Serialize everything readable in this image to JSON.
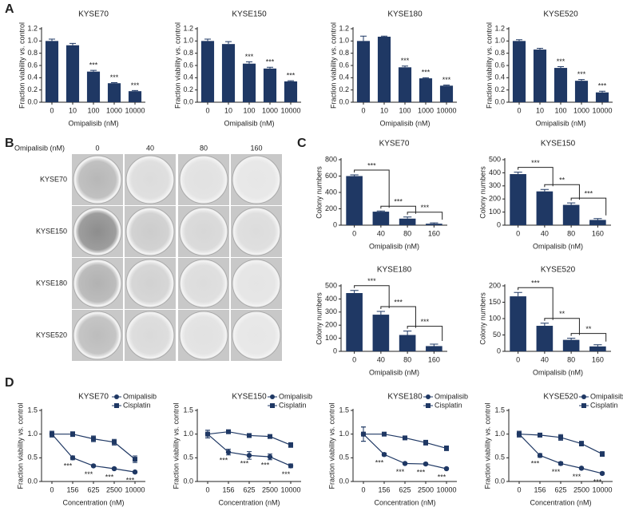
{
  "panel_labels": [
    "A",
    "B",
    "C",
    "D"
  ],
  "colony_assay": {
    "header": "Omipalisib (nM)",
    "doses": [
      "0",
      "40",
      "80",
      "160"
    ],
    "cell_lines": [
      "KYSE70",
      "KYSE150",
      "KYSE180",
      "KYSE520"
    ]
  },
  "chart_data": [
    {
      "type": "bar",
      "title": "KYSE70",
      "xlabel": "Omipalisib (nM)",
      "ylabel": "Fraction viability vs. control",
      "color": "#1f3864",
      "categories": [
        "0",
        "10",
        "100",
        "1000",
        "10000"
      ],
      "values": [
        1.0,
        0.93,
        0.5,
        0.31,
        0.18
      ],
      "errors": [
        0.03,
        0.03,
        0.02,
        0.01,
        0.01
      ],
      "significance": [
        null,
        null,
        "***",
        "***",
        "***"
      ],
      "ylim": [
        0,
        1.2
      ],
      "yticks": [
        {
          "value": 0,
          "label": "0.0"
        },
        0.2,
        0.4,
        0.6,
        0.8,
        {
          "value": 1,
          "label": "1.0"
        },
        1.2
      ]
    },
    {
      "type": "bar",
      "title": "KYSE150",
      "xlabel": "Omipalisib (nM)",
      "ylabel": "Fraction viability vs. control",
      "color": "#1f3864",
      "categories": [
        "0",
        "10",
        "100",
        "1000",
        "10000"
      ],
      "values": [
        1.0,
        0.95,
        0.63,
        0.55,
        0.34
      ],
      "errors": [
        0.03,
        0.04,
        0.03,
        0.02,
        0.01
      ],
      "significance": [
        null,
        null,
        "***",
        "***",
        "***"
      ],
      "ylim": [
        0,
        1.2
      ],
      "yticks": [
        {
          "value": 0,
          "label": "0.0"
        },
        0.2,
        0.4,
        0.6,
        0.8,
        {
          "value": 1,
          "label": "1.0"
        },
        1.2
      ]
    },
    {
      "type": "bar",
      "title": "KYSE180",
      "xlabel": "Omipalisib (nM)",
      "ylabel": "Fraction viability vs. control",
      "color": "#1f3864",
      "categories": [
        "0",
        "10",
        "100",
        "1000",
        "10000"
      ],
      "values": [
        1.0,
        1.07,
        0.57,
        0.39,
        0.27
      ],
      "errors": [
        0.08,
        0.01,
        0.02,
        0.01,
        0.01
      ],
      "significance": [
        null,
        null,
        "***",
        "***",
        "***"
      ],
      "ylim": [
        0,
        1.2
      ],
      "yticks": [
        {
          "value": 0,
          "label": "0.0"
        },
        0.2,
        0.4,
        0.6,
        0.8,
        {
          "value": 1,
          "label": "1.0"
        },
        1.2
      ]
    },
    {
      "type": "bar",
      "title": "KYSE520",
      "xlabel": "Omipalisib (nM)",
      "ylabel": "Fraction viability vs. control",
      "color": "#1f3864",
      "categories": [
        "0",
        "10",
        "100",
        "1000",
        "10000"
      ],
      "values": [
        1.0,
        0.86,
        0.56,
        0.35,
        0.16
      ],
      "errors": [
        0.02,
        0.02,
        0.02,
        0.02,
        0.02
      ],
      "significance": [
        null,
        null,
        "***",
        "***",
        "***"
      ],
      "ylim": [
        0,
        1.2
      ],
      "yticks": [
        {
          "value": 0,
          "label": "0.0"
        },
        0.2,
        0.4,
        0.6,
        0.8,
        {
          "value": 1,
          "label": "1.0"
        },
        1.2
      ]
    },
    {
      "type": "bar",
      "title": "KYSE70",
      "xlabel": "Omipalisib (nM)",
      "ylabel": "Colony numbers",
      "color": "#1f3864",
      "categories": [
        "0",
        "40",
        "80",
        "160"
      ],
      "values": [
        600,
        165,
        80,
        18
      ],
      "errors": [
        15,
        8,
        20,
        10
      ],
      "comparisons": [
        "***",
        "***",
        "***"
      ],
      "ylim": [
        0,
        800
      ],
      "yticks": [
        0,
        200,
        400,
        600,
        800
      ]
    },
    {
      "type": "bar",
      "title": "KYSE150",
      "xlabel": "Omipalisib (nM)",
      "ylabel": "Colony numbers",
      "color": "#1f3864",
      "categories": [
        "0",
        "40",
        "80",
        "160"
      ],
      "values": [
        390,
        258,
        155,
        40
      ],
      "errors": [
        15,
        15,
        15,
        10
      ],
      "comparisons": [
        "***",
        "**",
        "***"
      ],
      "ylim": [
        0,
        500
      ],
      "yticks": [
        0,
        100,
        200,
        300,
        400,
        500
      ]
    },
    {
      "type": "bar",
      "title": "KYSE180",
      "xlabel": "Omipalisib (nM)",
      "ylabel": "Colony numbers",
      "color": "#1f3864",
      "categories": [
        "0",
        "40",
        "80",
        "160"
      ],
      "values": [
        445,
        280,
        125,
        40
      ],
      "errors": [
        20,
        25,
        30,
        15
      ],
      "comparisons": [
        "***",
        "***",
        "***"
      ],
      "ylim": [
        0,
        500
      ],
      "yticks": [
        0,
        100,
        200,
        300,
        400,
        500
      ]
    },
    {
      "type": "bar",
      "title": "KYSE520",
      "xlabel": "Omipalisib (nM)",
      "ylabel": "Colony numbers",
      "color": "#1f3864",
      "categories": [
        "0",
        "40",
        "80",
        "160"
      ],
      "values": [
        168,
        78,
        35,
        15
      ],
      "errors": [
        12,
        8,
        5,
        5
      ],
      "comparisons": [
        "***",
        "**",
        "**"
      ],
      "ylim": [
        0,
        200
      ],
      "yticks": [
        0,
        50,
        100,
        150,
        200
      ]
    },
    {
      "type": "line",
      "title": "KYSE70",
      "xlabel": "Concentration (nM)",
      "ylabel": "Fraction viability vs. control",
      "categories": [
        "0",
        "156",
        "625",
        "2500",
        "10000"
      ],
      "series": [
        {
          "name": "Omipalisib",
          "color": "#1f3864",
          "marker": "circle",
          "values": [
            1.0,
            0.5,
            0.33,
            0.27,
            0.2
          ],
          "errors": [
            0.06,
            0.04,
            0.02,
            0.02,
            0.02
          ]
        },
        {
          "name": "Cisplatin",
          "color": "#1f3864",
          "marker": "square",
          "values": [
            1.0,
            1.0,
            0.9,
            0.83,
            0.47
          ],
          "errors": [
            0.06,
            0.05,
            0.06,
            0.06,
            0.07
          ]
        }
      ],
      "significance": [
        null,
        "***",
        "***",
        "***",
        "***"
      ],
      "ylim": [
        0,
        1.5
      ],
      "yticks": [
        {
          "value": 0,
          "label": "0.0"
        },
        0.5,
        {
          "value": 1,
          "label": "1.0"
        },
        1.5
      ]
    },
    {
      "type": "line",
      "title": "KYSE150",
      "xlabel": "Concentration (nM)",
      "ylabel": "Fraction viability vs. control",
      "categories": [
        "0",
        "156",
        "625",
        "2500",
        "10000"
      ],
      "series": [
        {
          "name": "Omipalisib",
          "color": "#1f3864",
          "marker": "circle",
          "values": [
            1.0,
            0.62,
            0.55,
            0.52,
            0.33
          ],
          "errors": [
            0.08,
            0.06,
            0.08,
            0.06,
            0.04
          ]
        },
        {
          "name": "Cisplatin",
          "color": "#1f3864",
          "marker": "square",
          "values": [
            1.0,
            1.05,
            0.97,
            0.95,
            0.77
          ],
          "errors": [
            0.08,
            0.03,
            0.02,
            0.02,
            0.05
          ]
        }
      ],
      "significance": [
        null,
        "***",
        "***",
        "***",
        "***"
      ],
      "ylim": [
        0,
        1.5
      ],
      "yticks": [
        {
          "value": 0,
          "label": "0.0"
        },
        0.5,
        {
          "value": 1,
          "label": "1.0"
        },
        1.5
      ]
    },
    {
      "type": "line",
      "title": "KYSE180",
      "xlabel": "Concentration (nM)",
      "ylabel": "Fraction viability vs. control",
      "categories": [
        "0",
        "156",
        "625",
        "2500",
        "10000"
      ],
      "series": [
        {
          "name": "Omipalisib",
          "color": "#1f3864",
          "marker": "circle",
          "values": [
            1.0,
            0.57,
            0.38,
            0.37,
            0.27
          ],
          "errors": [
            0.15,
            0.03,
            0.02,
            0.02,
            0.02
          ]
        },
        {
          "name": "Cisplatin",
          "color": "#1f3864",
          "marker": "square",
          "values": [
            1.0,
            1.0,
            0.92,
            0.82,
            0.7
          ],
          "errors": [
            0.15,
            0.03,
            0.03,
            0.05,
            0.05
          ]
        }
      ],
      "significance": [
        null,
        "***",
        "***",
        "***",
        "***"
      ],
      "ylim": [
        0,
        1.5
      ],
      "yticks": [
        {
          "value": 0,
          "label": "0.0"
        },
        0.5,
        {
          "value": 1,
          "label": "1.0"
        },
        1.5
      ]
    },
    {
      "type": "line",
      "title": "KYSE520",
      "xlabel": "Concentration (nM)",
      "ylabel": "Fraction viability vs. control",
      "categories": [
        "0",
        "156",
        "625",
        "2500",
        "10000"
      ],
      "series": [
        {
          "name": "Omipalisib",
          "color": "#1f3864",
          "marker": "circle",
          "values": [
            1.0,
            0.55,
            0.38,
            0.28,
            0.17
          ],
          "errors": [
            0.06,
            0.04,
            0.03,
            0.02,
            0.02
          ]
        },
        {
          "name": "Cisplatin",
          "color": "#1f3864",
          "marker": "square",
          "values": [
            1.0,
            0.98,
            0.93,
            0.8,
            0.58
          ],
          "errors": [
            0.06,
            0.04,
            0.06,
            0.05,
            0.05
          ]
        }
      ],
      "significance": [
        null,
        "***",
        "***",
        "***",
        "***"
      ],
      "ylim": [
        0,
        1.5
      ],
      "yticks": [
        {
          "value": 0,
          "label": "0.0"
        },
        0.5,
        {
          "value": 1,
          "label": "1.0"
        },
        1.5
      ]
    }
  ]
}
